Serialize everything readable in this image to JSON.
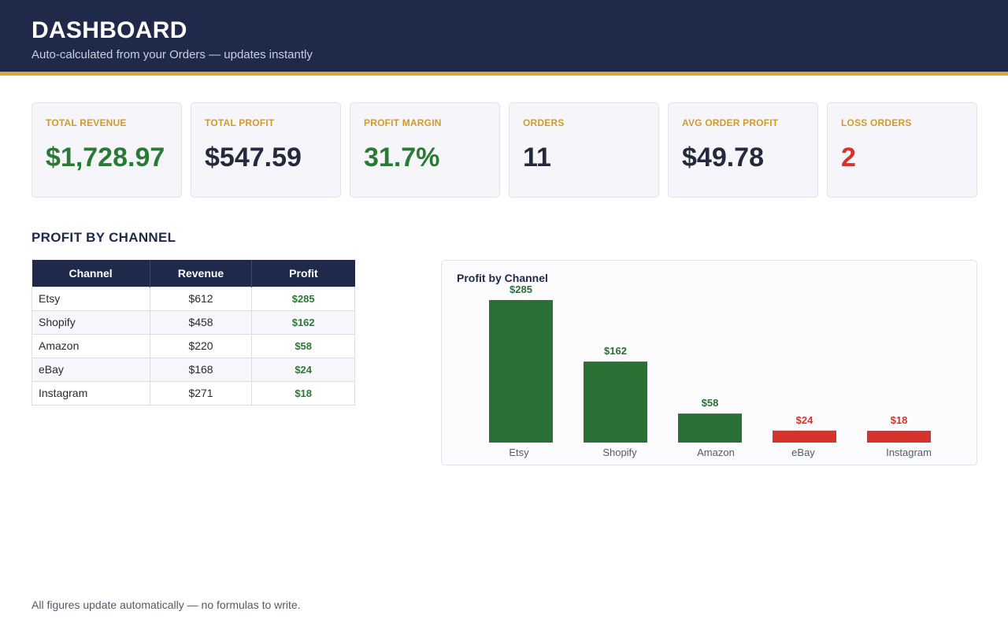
{
  "header": {
    "title": "DASHBOARD",
    "subtitle": "Auto-calculated from your Orders — updates instantly"
  },
  "kpis": [
    {
      "label": "TOTAL REVENUE",
      "value": "$1,728.97",
      "color": "#2a7a36"
    },
    {
      "label": "TOTAL PROFIT",
      "value": "$547.59",
      "color": "#232a3d"
    },
    {
      "label": "PROFIT MARGIN",
      "value": "31.7%",
      "color": "#2a7a36"
    },
    {
      "label": "ORDERS",
      "value": "11",
      "color": "#232a3d"
    },
    {
      "label": "AVG ORDER PROFIT",
      "value": "$49.78",
      "color": "#232a3d"
    },
    {
      "label": "LOSS ORDERS",
      "value": "2",
      "color": "#d6342a"
    }
  ],
  "section": {
    "title": "PROFIT BY CHANNEL"
  },
  "table": {
    "headers": [
      "Channel",
      "Revenue",
      "Profit"
    ],
    "rows": [
      [
        "Etsy",
        "$612",
        "$285"
      ],
      [
        "Shopify",
        "$458",
        "$162"
      ],
      [
        "Amazon",
        "$220",
        "$58"
      ],
      [
        "eBay",
        "$168",
        "$24"
      ],
      [
        "Instagram",
        "$271",
        "$18"
      ]
    ]
  },
  "chart_data": {
    "type": "bar",
    "title": "Profit by Channel",
    "categories": [
      "Etsy",
      "Shopify",
      "Amazon",
      "eBay",
      "Instagram"
    ],
    "values": [
      285,
      162,
      58,
      24,
      18
    ],
    "data_labels": [
      "$285",
      "$162",
      "$58",
      "$24",
      "$18"
    ],
    "bar_colors": [
      "#2a7035",
      "#2a7035",
      "#2a7035",
      "#d6342a",
      "#d6342a"
    ],
    "label_colors": [
      "#2a7035",
      "#2a7035",
      "#2a7035",
      "#d6342a",
      "#d6342a"
    ],
    "xlabel": "",
    "ylabel": "",
    "ylim": [
      0,
      285
    ],
    "grid": false,
    "legend": "none"
  },
  "footer": {
    "note": "All figures update automatically — no formulas to write."
  }
}
